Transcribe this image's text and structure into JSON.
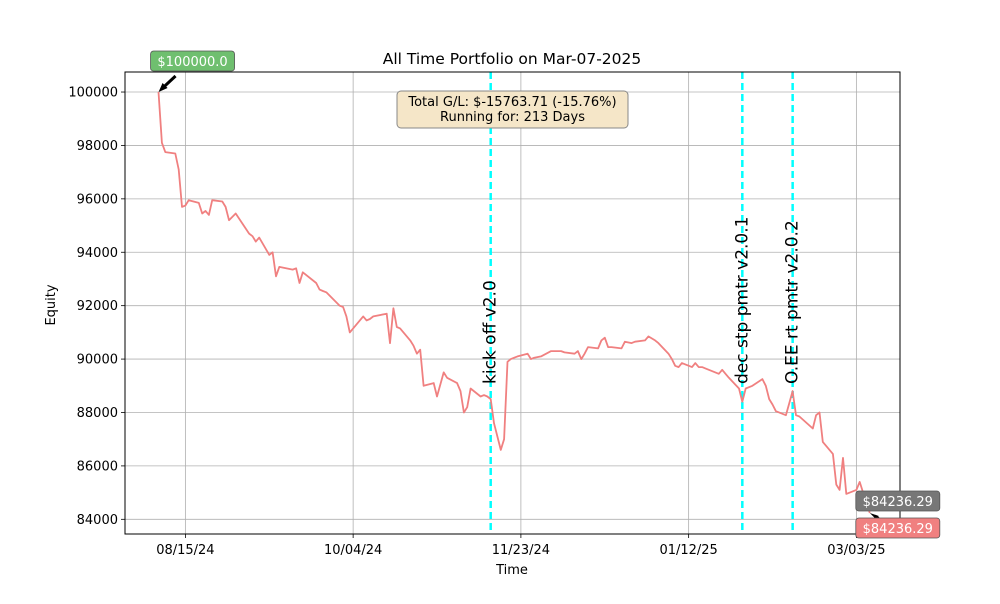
{
  "chart_data": {
    "type": "line",
    "title": "All Time Portfolio on Mar-07-2025",
    "xlabel": "Time",
    "ylabel": "Equity",
    "xlim": [
      "2024-07-28",
      "2025-03-16"
    ],
    "ylim": [
      83450,
      100750
    ],
    "grid": true,
    "x_ticks": [
      "2024-08-15",
      "2024-10-04",
      "2024-11-23",
      "2025-01-12",
      "2025-03-03"
    ],
    "x_tick_labels": [
      "08/15/24",
      "10/04/24",
      "11/23/24",
      "01/12/25",
      "03/03/25"
    ],
    "y_ticks": [
      84000,
      86000,
      88000,
      90000,
      92000,
      94000,
      96000,
      98000,
      100000
    ],
    "y_tick_labels": [
      "84000",
      "86000",
      "88000",
      "90000",
      "92000",
      "94000",
      "96000",
      "98000",
      "100000"
    ],
    "series": [
      {
        "color": "#f08080",
        "points": [
          [
            "2024-08-07",
            100000
          ],
          [
            "2024-08-08",
            98100
          ],
          [
            "2024-08-09",
            97750
          ],
          [
            "2024-08-12",
            97700
          ],
          [
            "2024-08-13",
            97100
          ],
          [
            "2024-08-14",
            95700
          ],
          [
            "2024-08-15",
            95750
          ],
          [
            "2024-08-16",
            95950
          ],
          [
            "2024-08-19",
            95850
          ],
          [
            "2024-08-20",
            95450
          ],
          [
            "2024-08-21",
            95550
          ],
          [
            "2024-08-22",
            95400
          ],
          [
            "2024-08-23",
            95950
          ],
          [
            "2024-08-26",
            95900
          ],
          [
            "2024-08-27",
            95700
          ],
          [
            "2024-08-28",
            95200
          ],
          [
            "2024-08-30",
            95450
          ],
          [
            "2024-09-03",
            94700
          ],
          [
            "2024-09-04",
            94600
          ],
          [
            "2024-09-05",
            94400
          ],
          [
            "2024-09-06",
            94550
          ],
          [
            "2024-09-09",
            93900
          ],
          [
            "2024-09-10",
            94000
          ],
          [
            "2024-09-11",
            93100
          ],
          [
            "2024-09-12",
            93450
          ],
          [
            "2024-09-16",
            93350
          ],
          [
            "2024-09-17",
            93400
          ],
          [
            "2024-09-18",
            92850
          ],
          [
            "2024-09-19",
            93250
          ],
          [
            "2024-09-23",
            92850
          ],
          [
            "2024-09-24",
            92600
          ],
          [
            "2024-09-25",
            92550
          ],
          [
            "2024-09-26",
            92500
          ],
          [
            "2024-09-30",
            92000
          ],
          [
            "2024-10-01",
            91950
          ],
          [
            "2024-10-02",
            91600
          ],
          [
            "2024-10-03",
            91000
          ],
          [
            "2024-10-07",
            91600
          ],
          [
            "2024-10-08",
            91450
          ],
          [
            "2024-10-09",
            91500
          ],
          [
            "2024-10-10",
            91600
          ],
          [
            "2024-10-14",
            91700
          ],
          [
            "2024-10-15",
            90600
          ],
          [
            "2024-10-16",
            91900
          ],
          [
            "2024-10-17",
            91200
          ],
          [
            "2024-10-18",
            91150
          ],
          [
            "2024-10-21",
            90700
          ],
          [
            "2024-10-22",
            90500
          ],
          [
            "2024-10-23",
            90200
          ],
          [
            "2024-10-24",
            90350
          ],
          [
            "2024-10-25",
            89000
          ],
          [
            "2024-10-28",
            89100
          ],
          [
            "2024-10-29",
            88600
          ],
          [
            "2024-10-31",
            89500
          ],
          [
            "2024-11-01",
            89300
          ],
          [
            "2024-11-04",
            89100
          ],
          [
            "2024-11-05",
            88800
          ],
          [
            "2024-11-06",
            88000
          ],
          [
            "2024-11-07",
            88200
          ],
          [
            "2024-11-08",
            88900
          ],
          [
            "2024-11-11",
            88600
          ],
          [
            "2024-11-12",
            88650
          ],
          [
            "2024-11-13",
            88600
          ],
          [
            "2024-11-14",
            88500
          ],
          [
            "2024-11-15",
            87600
          ],
          [
            "2024-11-17",
            86600
          ],
          [
            "2024-11-18",
            87000
          ],
          [
            "2024-11-19",
            89900
          ],
          [
            "2024-11-20",
            90000
          ],
          [
            "2024-11-21",
            90050
          ],
          [
            "2024-11-22",
            90100
          ],
          [
            "2024-11-25",
            90200
          ],
          [
            "2024-11-26",
            90000
          ],
          [
            "2024-11-27",
            90050
          ],
          [
            "2024-11-29",
            90100
          ],
          [
            "2024-12-02",
            90300
          ],
          [
            "2024-12-05",
            90300
          ],
          [
            "2024-12-06",
            90250
          ],
          [
            "2024-12-09",
            90200
          ],
          [
            "2024-12-10",
            90300
          ],
          [
            "2024-12-11",
            90000
          ],
          [
            "2024-12-12",
            90200
          ],
          [
            "2024-12-13",
            90450
          ],
          [
            "2024-12-16",
            90400
          ],
          [
            "2024-12-17",
            90700
          ],
          [
            "2024-12-18",
            90800
          ],
          [
            "2024-12-19",
            90450
          ],
          [
            "2024-12-20",
            90450
          ],
          [
            "2024-12-23",
            90400
          ],
          [
            "2024-12-24",
            90650
          ],
          [
            "2024-12-26",
            90600
          ],
          [
            "2024-12-27",
            90650
          ],
          [
            "2024-12-30",
            90700
          ],
          [
            "2024-12-31",
            90850
          ],
          [
            "2025-01-02",
            90700
          ],
          [
            "2025-01-03",
            90600
          ],
          [
            "2025-01-06",
            90200
          ],
          [
            "2025-01-07",
            90000
          ],
          [
            "2025-01-08",
            89750
          ],
          [
            "2025-01-09",
            89700
          ],
          [
            "2025-01-10",
            89850
          ],
          [
            "2025-01-13",
            89700
          ],
          [
            "2025-01-14",
            89850
          ],
          [
            "2025-01-15",
            89700
          ],
          [
            "2025-01-16",
            89700
          ],
          [
            "2025-01-17",
            89650
          ],
          [
            "2025-01-21",
            89450
          ],
          [
            "2025-01-22",
            89600
          ],
          [
            "2025-01-23",
            89450
          ],
          [
            "2025-01-24",
            89300
          ],
          [
            "2025-01-27",
            88900
          ],
          [
            "2025-01-28",
            88400
          ],
          [
            "2025-01-29",
            88900
          ],
          [
            "2025-01-31",
            89000
          ],
          [
            "2025-02-03",
            89250
          ],
          [
            "2025-02-04",
            89000
          ],
          [
            "2025-02-05",
            88500
          ],
          [
            "2025-02-06",
            88300
          ],
          [
            "2025-02-07",
            88050
          ],
          [
            "2025-02-10",
            87900
          ],
          [
            "2025-02-11",
            88350
          ],
          [
            "2025-02-12",
            88800
          ],
          [
            "2025-02-13",
            87900
          ],
          [
            "2025-02-14",
            87850
          ],
          [
            "2025-02-18",
            87400
          ],
          [
            "2025-02-19",
            87900
          ],
          [
            "2025-02-20",
            88000
          ],
          [
            "2025-02-21",
            86900
          ],
          [
            "2025-02-24",
            86450
          ],
          [
            "2025-02-25",
            85300
          ],
          [
            "2025-02-26",
            85100
          ],
          [
            "2025-02-27",
            86300
          ],
          [
            "2025-02-28",
            84950
          ],
          [
            "2025-03-03",
            85100
          ],
          [
            "2025-03-04",
            85400
          ],
          [
            "2025-03-05",
            85000
          ],
          [
            "2025-03-06",
            84600
          ],
          [
            "2025-03-07",
            84236.29
          ]
        ]
      }
    ],
    "vlines": [
      {
        "x": "2024-11-14",
        "label": "kick off v2.0",
        "color": "#00ffff"
      },
      {
        "x": "2025-01-28",
        "label": "dec stp pmtr v2.0.1",
        "color": "#00ffff"
      },
      {
        "x": "2025-02-12",
        "label": "O.EE rt pmtr v2.0.2",
        "color": "#00ffff"
      }
    ],
    "annotations": [
      {
        "text": "$100000.0",
        "x": "2024-08-07",
        "y": 100000,
        "bg": "#6fbf6f"
      },
      {
        "text": "$84236.29",
        "x": "2025-03-07",
        "y": 84236.29,
        "bg": "#777777",
        "position": "above"
      },
      {
        "text": "$84236.29",
        "x": "2025-03-07",
        "y": 84236.29,
        "bg": "#f08080",
        "position": "below"
      }
    ],
    "info_box": [
      "Total G/L: $-15763.71 (-15.76%)",
      "Running for: 213 Days"
    ]
  }
}
